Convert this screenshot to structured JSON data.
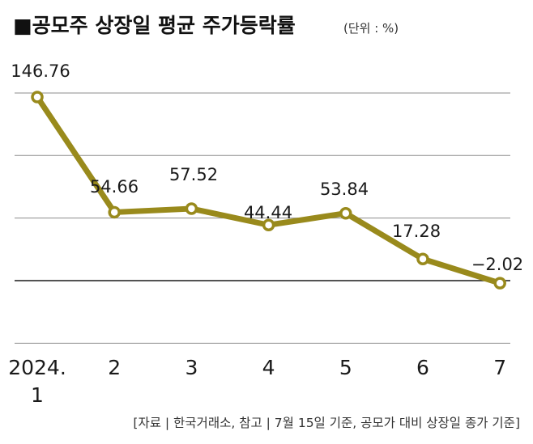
{
  "header": {
    "title": "■공모주 상장일 평균 주가등락률",
    "unit": "(단위 : %)"
  },
  "footer": {
    "source": "[자료 | 한국거래소, 참고 | 7월 15일 기준, 공모가 대비 상장일 종가 기준]"
  },
  "colors": {
    "line": "#998a1c",
    "marker_fill": "#ffffff",
    "grid": "#8c8c8c",
    "zero_line": "#1a1a1a"
  },
  "chart_data": {
    "type": "line",
    "title": "공모주 상장일 평균 주가등락률",
    "unit": "%",
    "x_labels": [
      [
        "2024.",
        "1"
      ],
      [
        "2"
      ],
      [
        "3"
      ],
      [
        "4"
      ],
      [
        "5"
      ],
      [
        "6"
      ],
      [
        "7"
      ]
    ],
    "values": [
      146.76,
      54.66,
      57.52,
      44.44,
      53.84,
      17.28,
      -2.02
    ],
    "value_labels": [
      "146.76",
      "54.66",
      "57.52",
      "44.44",
      "53.84",
      "17.28",
      "−2.02"
    ],
    "gridlines": [
      -50,
      0,
      50,
      100,
      150
    ],
    "zero_line": 0,
    "ylim": [
      -60,
      150
    ],
    "grid": true,
    "legend": false
  }
}
